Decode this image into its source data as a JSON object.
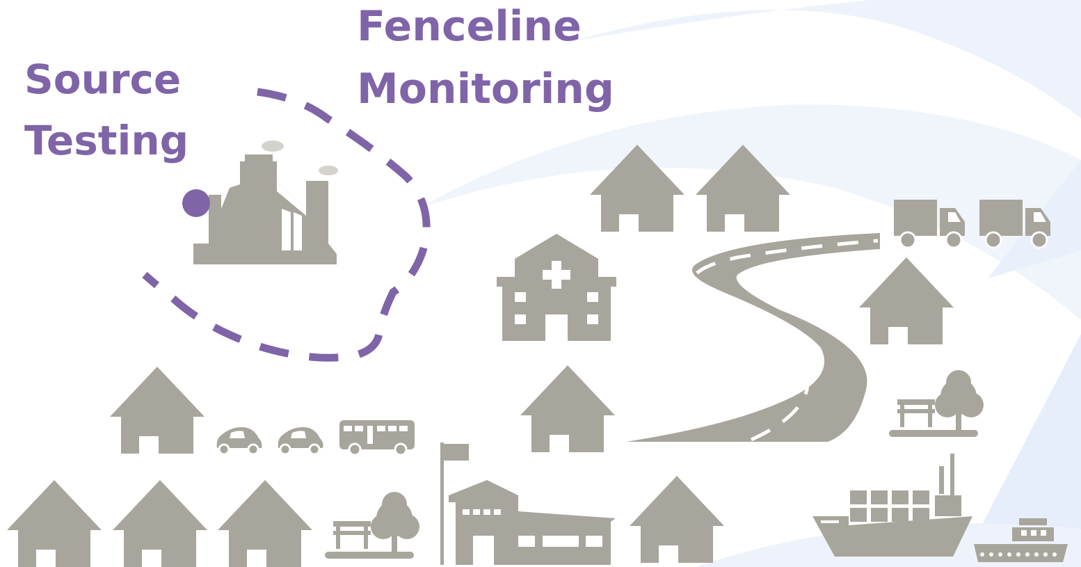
{
  "fenceline_label": {
    "lines": [
      "Fenceline",
      "Monitoring"
    ]
  },
  "source_label": {
    "lines": [
      "Source",
      "Testing"
    ]
  }
}
